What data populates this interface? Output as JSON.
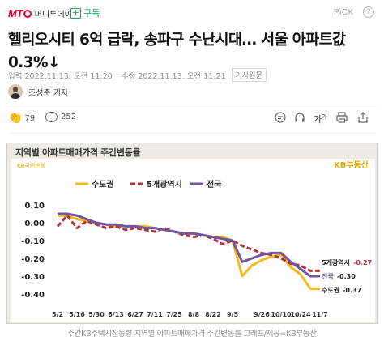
{
  "header": {
    "logo_text": "MT",
    "publisher": "머니투데이",
    "subscribe_label": "구독",
    "pick_label": "PiCK",
    "help_label": "?"
  },
  "article": {
    "headline": "헬리오시티 6억 급락, 송파구 수난시대… 서울 아파트값 0.3%↓",
    "input_label": "입력",
    "input_time": "2022.11.13. 오전 11:20",
    "modified_label": "수정",
    "modified_time": "2022.11.13. 오전 11:21",
    "original_link_label": "기사원문",
    "author": "조성준 기자"
  },
  "reactions": {
    "like_emoji": "👏",
    "like_count": "79",
    "comment_count": "252",
    "font_size_label": "가",
    "font_size_sup": "가"
  },
  "chart_box": {
    "title": "지역별 아파트매매가격 주간변동률",
    "brand": "KB국민은행",
    "source_brand": "KB부동산"
  },
  "chart_data": {
    "type": "line",
    "title": "지역별 아파트매매가격 주간변동률",
    "x": [
      "5/2",
      "5/9",
      "5/16",
      "5/23",
      "5/30",
      "6/6",
      "6/13",
      "6/20",
      "6/27",
      "7/4",
      "7/11",
      "7/18",
      "7/25",
      "8/1",
      "8/8",
      "8/15",
      "8/22",
      "8/29",
      "9/5",
      "9/12",
      "9/19",
      "9/26",
      "10/3",
      "10/10",
      "10/17",
      "10/24",
      "10/31",
      "11/7"
    ],
    "x_tick_labels": [
      "5/2",
      "5/16",
      "5/30",
      "6/13",
      "6/27",
      "7/11",
      "7/25",
      "8/8",
      "8/22",
      "9/5",
      "9/26",
      "10/10",
      "10/24",
      "11/7"
    ],
    "series": [
      {
        "name": "수도권",
        "color": "#f2b820",
        "values": [
          0.04,
          0.04,
          0.02,
          0.01,
          0.0,
          -0.01,
          -0.02,
          -0.02,
          -0.02,
          -0.02,
          -0.03,
          -0.04,
          -0.05,
          -0.06,
          -0.06,
          -0.07,
          -0.08,
          -0.08,
          -0.1,
          -0.3,
          -0.24,
          -0.21,
          -0.19,
          -0.18,
          -0.25,
          -0.29,
          -0.37,
          -0.37
        ]
      },
      {
        "name": "5개광역시",
        "color": "#b3343a",
        "values": [
          -0.02,
          0.04,
          -0.03,
          0.01,
          -0.01,
          -0.03,
          -0.02,
          -0.04,
          -0.03,
          -0.04,
          -0.05,
          -0.03,
          -0.05,
          -0.07,
          -0.08,
          -0.07,
          -0.09,
          -0.12,
          -0.1,
          -0.13,
          -0.15,
          -0.17,
          -0.18,
          -0.2,
          -0.23,
          -0.24,
          -0.27,
          -0.27
        ]
      },
      {
        "name": "전국",
        "color": "#6f55a3",
        "values": [
          0.05,
          0.05,
          0.04,
          0.02,
          0.0,
          -0.01,
          -0.01,
          -0.02,
          -0.02,
          -0.03,
          -0.03,
          -0.04,
          -0.05,
          -0.06,
          -0.06,
          -0.07,
          -0.08,
          -0.09,
          -0.1,
          -0.22,
          -0.2,
          -0.18,
          -0.17,
          -0.17,
          -0.22,
          -0.26,
          -0.3,
          -0.3
        ]
      }
    ],
    "end_labels": [
      {
        "name": "5개광역시",
        "value": "-0.27"
      },
      {
        "name": "전국",
        "value": "-0.30"
      },
      {
        "name": "수도권",
        "value": "-0.37"
      }
    ],
    "y_ticks": [
      "0.10",
      "0.00",
      "-0.10",
      "-0.20",
      "-0.30",
      "-0.40"
    ],
    "ylim": [
      -0.4,
      0.1
    ],
    "grid": false,
    "legend": "top"
  },
  "caption": "주간KB주택시장동향 지역별 아파트매매가격 주간변동률 그래프/제공=KB부동산"
}
